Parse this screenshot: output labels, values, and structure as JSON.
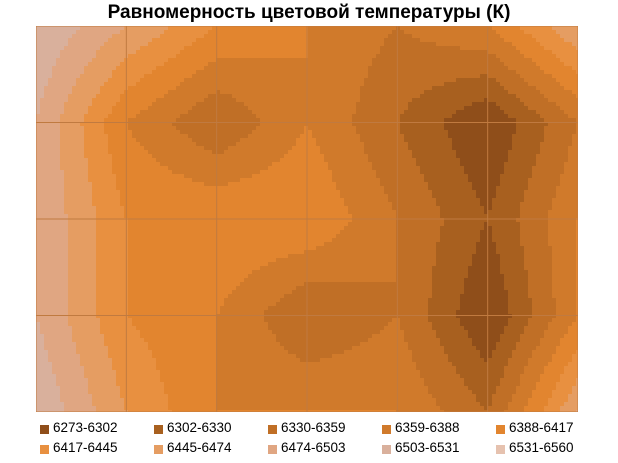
{
  "chart_data": {
    "type": "heatmap",
    "title": "Равномерность цветовой температуры (К)",
    "xlabel": "",
    "ylabel": "",
    "grid_rows": 4,
    "grid_cols": 6,
    "legend_position": "bottom",
    "legend": [
      {
        "label": "6273-6302",
        "color": "#8f4e1a"
      },
      {
        "label": "6302-6330",
        "color": "#a8601f"
      },
      {
        "label": "6330-6359",
        "color": "#c06f26"
      },
      {
        "label": "6359-6388",
        "color": "#d07a2b"
      },
      {
        "label": "6388-6417",
        "color": "#e2852f"
      },
      {
        "label": "6417-6445",
        "color": "#e89040"
      },
      {
        "label": "6445-6474",
        "color": "#e59d62"
      },
      {
        "label": "6474-6503",
        "color": "#e0a682"
      },
      {
        "label": "6503-6531",
        "color": "#d9b09c"
      },
      {
        "label": "6531-6560",
        "color": "#e6c2af"
      }
    ],
    "values": [
      [
        6531,
        6474,
        6417,
        6388,
        6359,
        6388,
        6474
      ],
      [
        6503,
        6388,
        6330,
        6388,
        6330,
        6273,
        6359
      ],
      [
        6503,
        6417,
        6417,
        6417,
        6359,
        6302,
        6388
      ],
      [
        6503,
        6417,
        6388,
        6330,
        6359,
        6273,
        6388
      ],
      [
        6531,
        6445,
        6388,
        6388,
        6388,
        6330,
        6474
      ]
    ]
  }
}
